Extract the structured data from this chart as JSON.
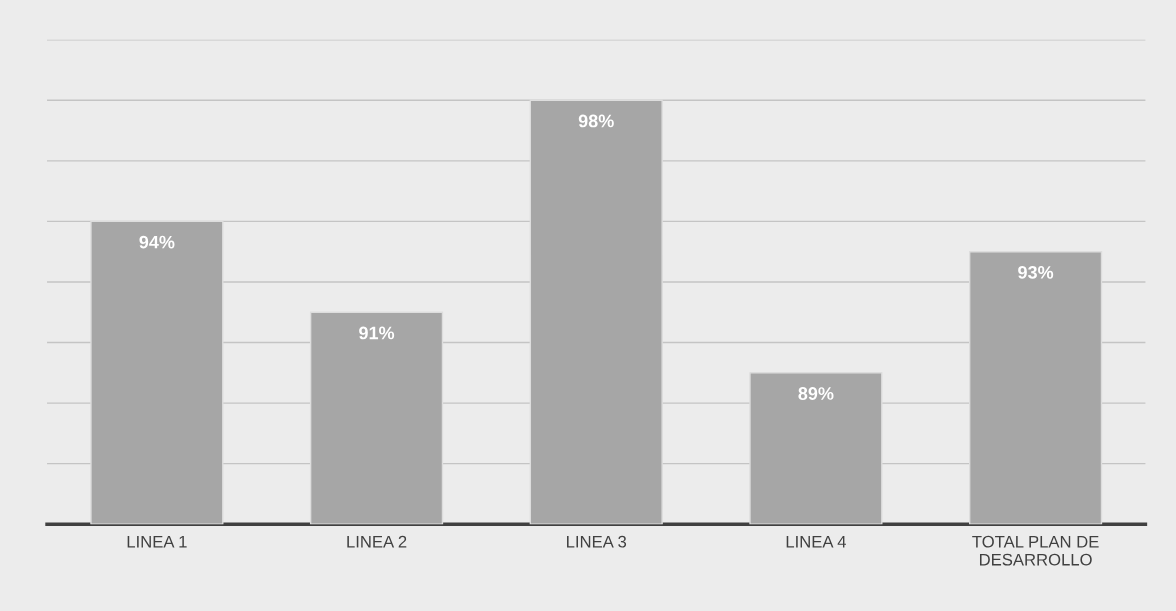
{
  "chart_data": {
    "type": "bar",
    "categories": [
      "LINEA 1",
      "LINEA 2",
      "LINEA 3",
      "LINEA 4",
      "TOTAL PLAN DE\nDESARROLLO"
    ],
    "values": [
      94,
      91,
      98,
      89,
      93
    ],
    "value_labels": [
      "94%",
      "91%",
      "98%",
      "89%",
      "93%"
    ],
    "color": "#a6a6a6",
    "ylim": [
      84,
      100
    ],
    "yticks": [
      {
        "value": 86,
        "label": null
      },
      {
        "value": 88,
        "label": null
      },
      {
        "value": 90,
        "label": null
      },
      {
        "value": 92,
        "label": null
      },
      {
        "value": 94,
        "label": null
      },
      {
        "value": 96,
        "label": null
      },
      {
        "value": 98,
        "label": null
      },
      {
        "value": 100,
        "label": null
      }
    ],
    "tick_labels": "x",
    "grid": "y",
    "legend": false
  }
}
